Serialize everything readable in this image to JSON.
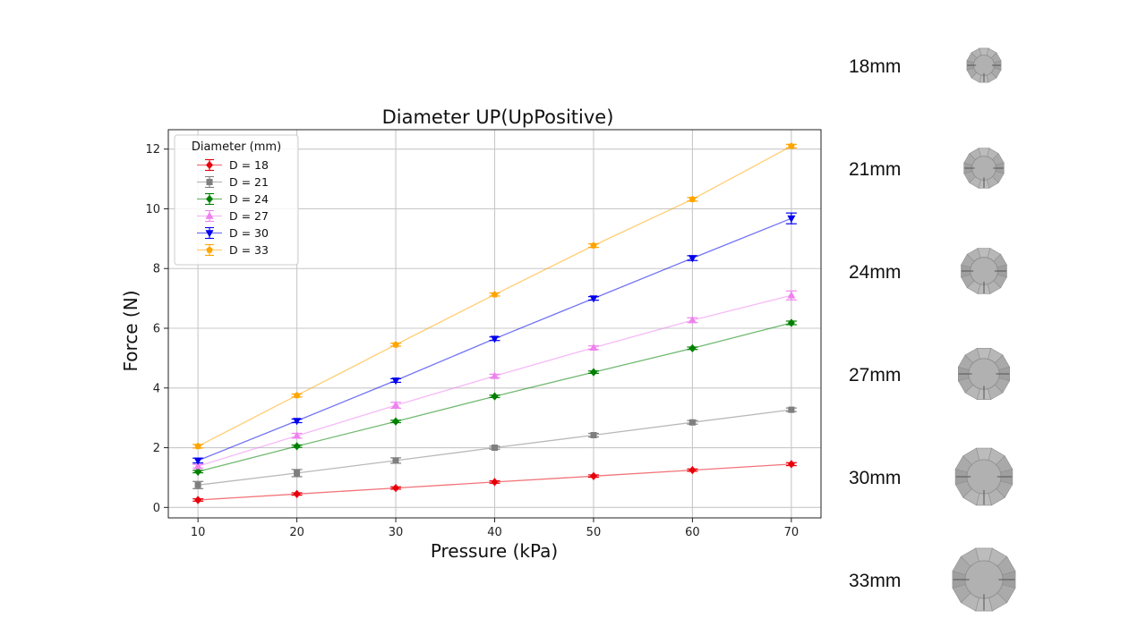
{
  "chart_data": {
    "type": "line",
    "title": "Diameter UP(UpPositive)",
    "xlabel": "Pressure (kPa)",
    "ylabel": "Force (N)",
    "x": [
      10,
      20,
      30,
      40,
      50,
      60,
      70
    ],
    "xlim": [
      7,
      73
    ],
    "ylim": [
      -0.35,
      12.65
    ],
    "xticks": [
      10,
      20,
      30,
      40,
      50,
      60,
      70
    ],
    "yticks": [
      0,
      2,
      4,
      6,
      8,
      10,
      12
    ],
    "grid": true,
    "legend_title": "Diameter (mm)",
    "legend_position": "upper-left",
    "error_bars": true,
    "series": [
      {
        "name": "D = 18",
        "color": "#e8000b",
        "marker": "diamond",
        "values": [
          0.25,
          0.45,
          0.65,
          0.85,
          1.05,
          1.25,
          1.45
        ],
        "errors": [
          0.04,
          0.04,
          0.04,
          0.04,
          0.04,
          0.04,
          0.05
        ]
      },
      {
        "name": "D = 21",
        "color": "#7f7f7f",
        "marker": "square",
        "values": [
          0.75,
          1.15,
          1.57,
          2.0,
          2.42,
          2.85,
          3.27
        ],
        "errors": [
          0.12,
          0.12,
          0.09,
          0.05,
          0.06,
          0.06,
          0.06
        ]
      },
      {
        "name": "D = 24",
        "color": "#008000",
        "marker": "diamond",
        "values": [
          1.2,
          2.05,
          2.88,
          3.72,
          4.53,
          5.33,
          6.18
        ],
        "errors": [
          0.04,
          0.04,
          0.04,
          0.04,
          0.04,
          0.04,
          0.06
        ]
      },
      {
        "name": "D = 27",
        "color": "#ee82ee",
        "marker": "triangle-up",
        "values": [
          1.38,
          2.4,
          3.42,
          4.4,
          5.35,
          6.27,
          7.1
        ],
        "errors": [
          0.06,
          0.08,
          0.1,
          0.06,
          0.06,
          0.08,
          0.15
        ]
      },
      {
        "name": "D = 30",
        "color": "#0000ee",
        "marker": "triangle-down",
        "values": [
          1.57,
          2.9,
          4.25,
          5.65,
          7.0,
          8.35,
          9.68
        ],
        "errors": [
          0.08,
          0.06,
          0.06,
          0.06,
          0.06,
          0.08,
          0.18
        ]
      },
      {
        "name": "D = 33",
        "color": "#ffa500",
        "marker": "pentagon",
        "values": [
          2.05,
          3.75,
          5.45,
          7.13,
          8.77,
          10.32,
          12.1
        ],
        "errors": [
          0.06,
          0.05,
          0.05,
          0.05,
          0.06,
          0.06,
          0.06
        ]
      }
    ]
  },
  "side_panel": {
    "items": [
      {
        "label": "18mm",
        "diameter_mm": 18
      },
      {
        "label": "21mm",
        "diameter_mm": 21
      },
      {
        "label": "24mm",
        "diameter_mm": 24
      },
      {
        "label": "27mm",
        "diameter_mm": 27
      },
      {
        "label": "30mm",
        "diameter_mm": 30
      },
      {
        "label": "33mm",
        "diameter_mm": 33
      }
    ]
  }
}
